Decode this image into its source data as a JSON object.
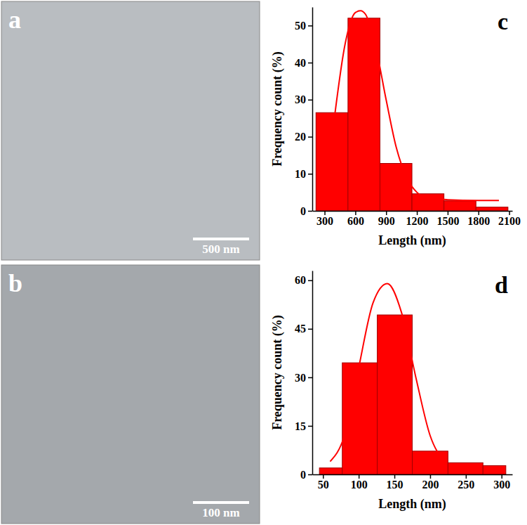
{
  "images": [
    {
      "panel": "a",
      "scale_bar": "500 nm"
    },
    {
      "panel": "b",
      "scale_bar": "100 nm"
    }
  ],
  "chart_data": [
    {
      "type": "histogram",
      "panel": "c",
      "x_label": "Length (nm)",
      "y_label": "Frequency count (%)",
      "bins": [
        216,
        528,
        840,
        1152,
        1464,
        1776,
        2088
      ],
      "xlim": [
        180,
        2130
      ],
      "xticks": [
        300,
        600,
        900,
        1200,
        1500,
        1800,
        2100
      ],
      "ylim": [
        0,
        55
      ],
      "yticks": [
        0,
        10,
        20,
        30,
        40,
        50
      ],
      "series": [
        {
          "type": "bar",
          "color": "#ff0000",
          "values": [
            26.5,
            52,
            12.8,
            4.6,
            2.7,
            1.0
          ]
        },
        {
          "type": "line",
          "color": "#ff0000",
          "x": [
            400,
            500,
            600,
            650,
            700,
            800,
            900,
            1000,
            1100,
            1200,
            1300,
            1500,
            1800,
            2000
          ],
          "values": [
            26,
            45,
            53.5,
            54,
            53,
            44,
            30,
            17,
            9,
            5,
            3.5,
            3,
            2.8,
            2.8
          ]
        }
      ]
    },
    {
      "type": "histogram",
      "panel": "d",
      "x_label": "Length (nm)",
      "y_label": "Frequency count (%)",
      "bins": [
        45,
        77,
        126,
        175,
        225,
        274,
        306
      ],
      "xlim": [
        35,
        315
      ],
      "xticks": [
        50,
        100,
        150,
        200,
        250,
        300
      ],
      "ylim": [
        0,
        63
      ],
      "yticks": [
        0,
        15,
        30,
        45,
        60
      ],
      "series": [
        {
          "type": "bar",
          "color": "#ff0000",
          "values": [
            2.0,
            34.5,
            49.3,
            7.2,
            3.6,
            2.7
          ]
        },
        {
          "type": "line",
          "color": "#ff0000",
          "x": [
            60,
            80,
            100,
            120,
            140,
            160,
            180,
            200,
            220
          ],
          "values": [
            4,
            12,
            33,
            53,
            59,
            50,
            30,
            12,
            4
          ]
        }
      ]
    }
  ]
}
